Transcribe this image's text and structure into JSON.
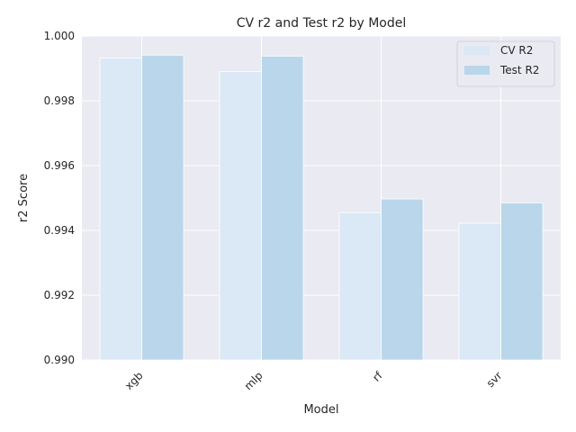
{
  "chart_data": {
    "type": "bar",
    "title": "CV r2 and Test r2 by Model",
    "xlabel": "Model",
    "ylabel": "r2 Score",
    "categories": [
      "xgb",
      "mlp",
      "rf",
      "svr"
    ],
    "series": [
      {
        "name": "CV R2",
        "values": [
          0.99932,
          0.9989,
          0.99455,
          0.99422
        ],
        "color": "#dbe8f5"
      },
      {
        "name": "Test R2",
        "values": [
          0.99941,
          0.99938,
          0.99497,
          0.99485
        ],
        "color": "#b9d6ea"
      }
    ],
    "ylim": [
      0.99,
      1.0
    ],
    "yticks": [
      "0.990",
      "0.992",
      "0.994",
      "0.996",
      "0.998",
      "1.000"
    ],
    "ytick_values": [
      0.99,
      0.992,
      0.994,
      0.996,
      0.998,
      1.0
    ],
    "grid": true,
    "legend": "top-right",
    "background": "#eaeaf2",
    "xtick_rotation_deg": 45
  }
}
